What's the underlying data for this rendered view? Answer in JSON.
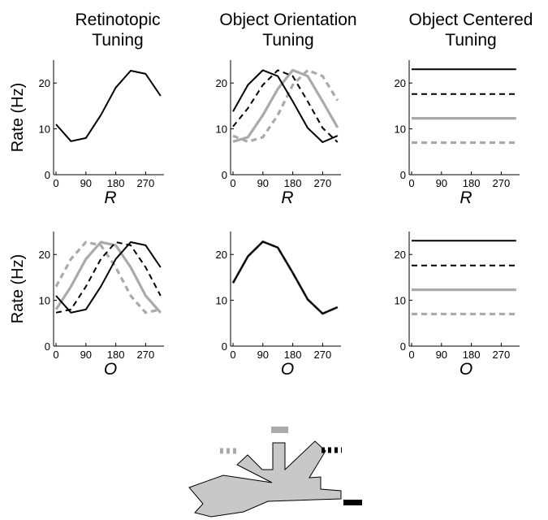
{
  "column_titles": [
    [
      "Retinotopic",
      "Tuning"
    ],
    [
      "Object Orientation",
      "Tuning"
    ],
    [
      "Object Centered",
      "Tuning"
    ]
  ],
  "ylabel": "Rate (Hz)",
  "series_styles": [
    {
      "color": "#000000",
      "dashed": false
    },
    {
      "color": "#000000",
      "dashed": true
    },
    {
      "color": "#aaaaaa",
      "dashed": false
    },
    {
      "color": "#aaaaaa",
      "dashed": true
    }
  ],
  "chart_data": [
    {
      "type": "line",
      "panel": "row1-col1",
      "xlabel": "R",
      "ylabel": "Rate (Hz)",
      "x": [
        0,
        45,
        90,
        135,
        180,
        225,
        270,
        315
      ],
      "xticks": [
        0,
        90,
        180,
        270
      ],
      "yticks": [
        0,
        10,
        20
      ],
      "xlim": [
        0,
        330
      ],
      "ylim": [
        0,
        25
      ],
      "series": [
        {
          "values": [
            11,
            7.3,
            8,
            13,
            19,
            22.7,
            22,
            17.2
          ]
        }
      ]
    },
    {
      "type": "line",
      "panel": "row1-col2",
      "xlabel": "R",
      "ylabel": "",
      "x": [
        0,
        45,
        90,
        135,
        180,
        225,
        270,
        315
      ],
      "xticks": [
        0,
        90,
        180,
        270
      ],
      "yticks": [
        0,
        10,
        20
      ],
      "xlim": [
        0,
        330
      ],
      "ylim": [
        0,
        25
      ],
      "series": [
        {
          "values": [
            13.8,
            19.6,
            22.8,
            21.5,
            16,
            10.2,
            7.1,
            8.5
          ]
        },
        {
          "values": [
            10.5,
            14.5,
            19.6,
            22.8,
            21.5,
            16,
            10.2,
            7.1
          ]
        },
        {
          "values": [
            7.2,
            8.2,
            13,
            18.7,
            22.8,
            21.5,
            16,
            10.3
          ]
        },
        {
          "values": [
            8.5,
            7.2,
            8.2,
            13,
            19.6,
            22.8,
            21.5,
            16.2
          ]
        }
      ]
    },
    {
      "type": "line",
      "panel": "row1-col3",
      "xlabel": "R",
      "ylabel": "",
      "x": [
        0,
        315
      ],
      "xticks": [
        0,
        90,
        180,
        270
      ],
      "yticks": [
        0,
        10,
        20
      ],
      "xlim": [
        0,
        330
      ],
      "ylim": [
        0,
        25
      ],
      "series": [
        {
          "values": [
            23,
            23
          ]
        },
        {
          "values": [
            17.6,
            17.6
          ]
        },
        {
          "values": [
            12.3,
            12.3
          ]
        },
        {
          "values": [
            7,
            7
          ]
        }
      ]
    },
    {
      "type": "line",
      "panel": "row2-col1",
      "xlabel": "O",
      "ylabel": "Rate (Hz)",
      "x": [
        0,
        45,
        90,
        135,
        180,
        225,
        270,
        315
      ],
      "xticks": [
        0,
        90,
        180,
        270
      ],
      "yticks": [
        0,
        10,
        20
      ],
      "xlim": [
        0,
        330
      ],
      "ylim": [
        0,
        25
      ],
      "series": [
        {
          "values": [
            11,
            7.3,
            8,
            13,
            19,
            22.7,
            22,
            17.2
          ]
        },
        {
          "values": [
            7.3,
            8,
            13,
            19,
            22.7,
            22,
            17.2,
            11
          ]
        },
        {
          "values": [
            8,
            13,
            19,
            22.7,
            22,
            17.2,
            11,
            7.3
          ]
        },
        {
          "values": [
            13,
            19,
            22.7,
            22,
            17.2,
            11,
            7.3,
            8
          ]
        }
      ]
    },
    {
      "type": "line",
      "panel": "row2-col2",
      "xlabel": "O",
      "ylabel": "",
      "x": [
        0,
        45,
        90,
        135,
        180,
        225,
        270,
        315
      ],
      "xticks": [
        0,
        90,
        180,
        270
      ],
      "yticks": [
        0,
        10,
        20
      ],
      "xlim": [
        0,
        330
      ],
      "ylim": [
        0,
        25
      ],
      "series": [
        {
          "values": [
            13.8,
            19.6,
            22.8,
            21.5,
            16,
            10.2,
            7.1,
            8.5
          ]
        },
        {
          "values": [
            13.8,
            19.6,
            22.8,
            21.5,
            16,
            10.2,
            7.1,
            8.5
          ]
        },
        {
          "values": [
            13.8,
            19.6,
            22.8,
            21.5,
            16,
            10.2,
            7.1,
            8.5
          ]
        },
        {
          "values": [
            13.8,
            19.6,
            22.8,
            21.5,
            16,
            10.2,
            7.1,
            8.5
          ]
        }
      ]
    },
    {
      "type": "line",
      "panel": "row2-col3",
      "xlabel": "O",
      "ylabel": "",
      "x": [
        0,
        315
      ],
      "xticks": [
        0,
        90,
        180,
        270
      ],
      "yticks": [
        0,
        10,
        20
      ],
      "xlim": [
        0,
        330
      ],
      "ylim": [
        0,
        25
      ],
      "series": [
        {
          "values": [
            23,
            23
          ]
        },
        {
          "values": [
            17.6,
            17.6
          ]
        },
        {
          "values": [
            12.3,
            12.3
          ]
        },
        {
          "values": [
            7,
            7
          ]
        }
      ]
    }
  ]
}
